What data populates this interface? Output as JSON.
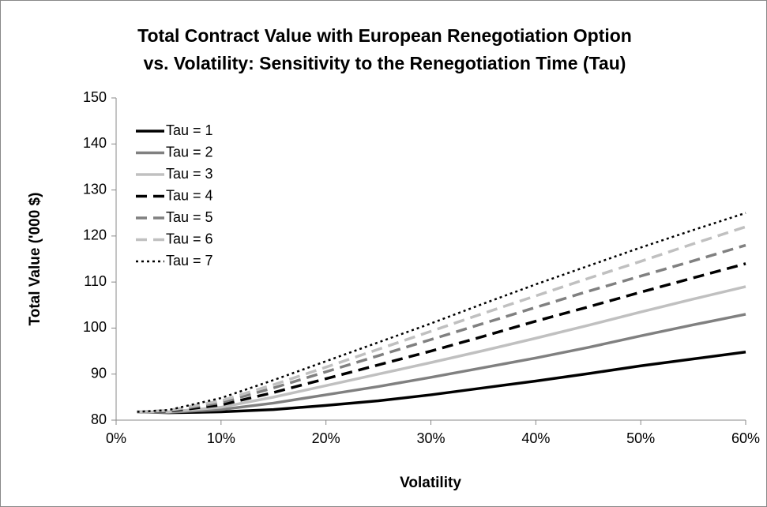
{
  "chart_data": {
    "type": "line",
    "title": [
      "Total Contract Value with European Renegotiation Option",
      "vs. Volatility: Sensitivity to the Renegotiation Time (Tau)"
    ],
    "xlabel": "Volatility",
    "ylabel": "Total Value ('000 $)",
    "x": [
      2,
      5,
      10,
      15,
      20,
      25,
      30,
      35,
      40,
      45,
      50,
      55,
      60
    ],
    "series": [
      {
        "name": "Tau = 1",
        "color": "#000000",
        "dash": "solid",
        "values": [
          81.8,
          81.6,
          81.8,
          82.3,
          83.2,
          84.2,
          85.5,
          87,
          88.5,
          90.1,
          91.8,
          93.3,
          94.8
        ]
      },
      {
        "name": "Tau = 2",
        "color": "#808080",
        "dash": "solid",
        "values": [
          81.8,
          81.7,
          82.3,
          83.7,
          85.5,
          87.3,
          89.3,
          91.4,
          93.5,
          95.8,
          98.3,
          100.7,
          103
        ]
      },
      {
        "name": "Tau = 3",
        "color": "#c0c0c0",
        "dash": "solid",
        "values": [
          81.8,
          81.8,
          82.8,
          85,
          87.5,
          90,
          92.5,
          95.1,
          97.8,
          100.6,
          103.5,
          106.3,
          109
        ]
      },
      {
        "name": "Tau = 4",
        "color": "#000000",
        "dash": "dashed",
        "values": [
          81.8,
          81.9,
          83.3,
          86,
          89,
          92,
          95,
          98.2,
          101.5,
          104.6,
          107.8,
          110.9,
          114
        ]
      },
      {
        "name": "Tau = 5",
        "color": "#808080",
        "dash": "dashed",
        "values": [
          81.8,
          82,
          83.8,
          87,
          90.5,
          94,
          97.5,
          101,
          104.5,
          108,
          111.3,
          114.6,
          118
        ]
      },
      {
        "name": "Tau = 6",
        "color": "#c0c0c0",
        "dash": "dashed",
        "values": [
          81.8,
          82.1,
          84.2,
          87.7,
          91.5,
          95.4,
          99.3,
          103.2,
          107,
          110.8,
          114.5,
          118.3,
          122
        ]
      },
      {
        "name": "Tau = 7",
        "color": "#000000",
        "dash": "dotted",
        "values": [
          81.8,
          82.2,
          84.8,
          88.7,
          92.8,
          96.9,
          101,
          105.3,
          109.5,
          113.5,
          117.5,
          121.3,
          125
        ]
      }
    ],
    "xlim": [
      0,
      60
    ],
    "xticks": [
      {
        "value": 0,
        "label": "0%"
      },
      {
        "value": 10,
        "label": "10%"
      },
      {
        "value": 20,
        "label": "20%"
      },
      {
        "value": 30,
        "label": "30%"
      },
      {
        "value": 40,
        "label": "40%"
      },
      {
        "value": 50,
        "label": "50%"
      },
      {
        "value": 60,
        "label": "60%"
      }
    ],
    "ylim": [
      80,
      150
    ],
    "yticks": [
      80,
      90,
      100,
      110,
      120,
      130,
      140,
      150
    ],
    "grid": false,
    "legend": "upper-left"
  }
}
